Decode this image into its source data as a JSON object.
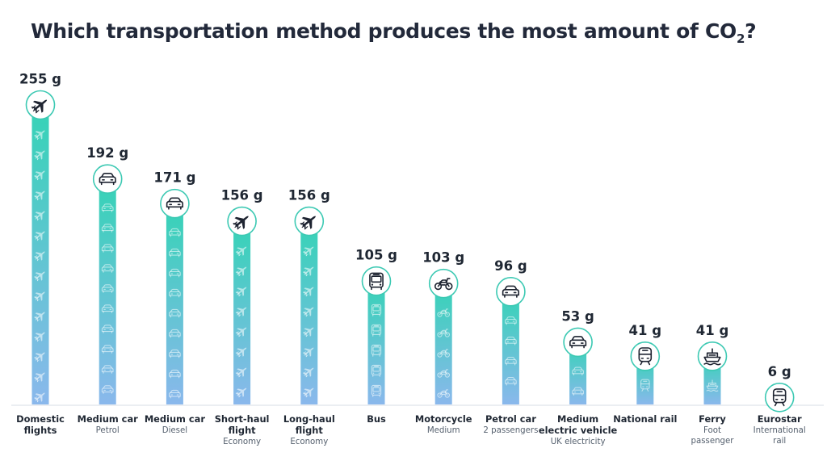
{
  "title": "Which transportation method produces the most amount of CO",
  "title_subscript": "2",
  "title_end": "?",
  "colors": {
    "bar_top": "#35d3b6",
    "bar_bottom": "#8ab8ec",
    "icon_ring": "#3cc9b3",
    "baseline": "#d7dde4"
  },
  "chart_data": {
    "type": "bar",
    "title": "Which transportation method produces the most amount of CO2?",
    "unit": "g",
    "ylim": [
      0,
      255
    ],
    "categories": [
      "Domestic flights",
      "Medium car",
      "Medium car",
      "Short-haul flight",
      "Long-haul flight",
      "Bus",
      "Motorcycle",
      "Petrol car",
      "Medium electric vehicle",
      "National rail",
      "Ferry",
      "Eurostar"
    ],
    "label_lines": [
      [
        "Domestic",
        "flights"
      ],
      [
        "Medium car"
      ],
      [
        "Medium car"
      ],
      [
        "Short-haul",
        "flight"
      ],
      [
        "Long-haul",
        "flight"
      ],
      [
        "Bus"
      ],
      [
        "Motorcycle"
      ],
      [
        "Petrol car"
      ],
      [
        "Medium",
        "electric vehicle"
      ],
      [
        "National rail"
      ],
      [
        "Ferry"
      ],
      [
        "Eurostar"
      ]
    ],
    "subtitle_lines": [
      [],
      [
        "Petrol"
      ],
      [
        "Diesel"
      ],
      [
        "Economy"
      ],
      [
        "Economy"
      ],
      [],
      [
        "Medium"
      ],
      [
        "2 passengers"
      ],
      [
        "UK electricity"
      ],
      [],
      [
        "Foot",
        "passenger"
      ],
      [
        "International",
        "rail"
      ]
    ],
    "values": [
      255,
      192,
      171,
      156,
      156,
      105,
      103,
      96,
      53,
      41,
      41,
      6
    ],
    "value_labels": [
      "255 g",
      "192 g",
      "171 g",
      "156 g",
      "156 g",
      "105 g",
      "103 g",
      "96 g",
      "53 g",
      "41 g",
      "41 g",
      "6 g"
    ],
    "icons": [
      "plane-icon",
      "car-icon",
      "car-icon",
      "plane-icon",
      "plane-icon",
      "bus-icon",
      "motorcycle-icon",
      "car-icon",
      "car-icon",
      "train-icon",
      "ship-icon",
      "train-icon"
    ]
  }
}
